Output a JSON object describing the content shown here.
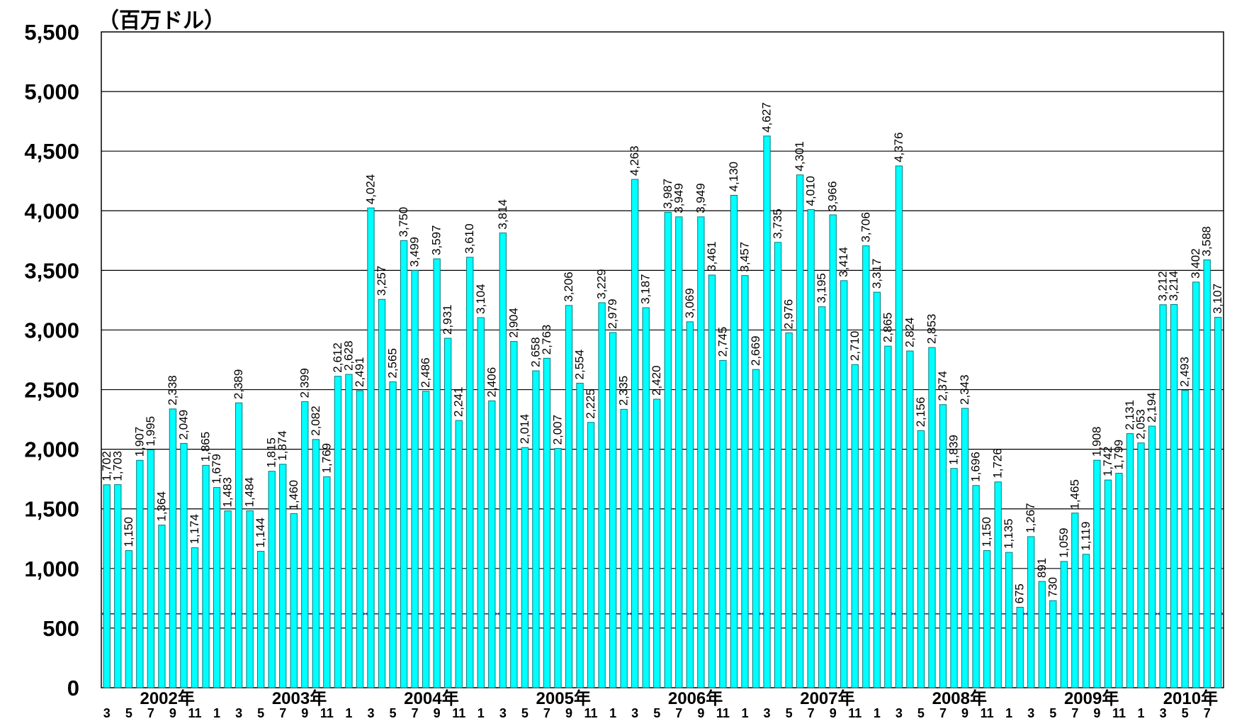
{
  "chart_data": {
    "type": "bar",
    "unit_label": "（百万ドル）",
    "title": "",
    "xlabel": "",
    "ylabel": "",
    "ylim": [
      0,
      5500
    ],
    "yticks": [
      0,
      500,
      1000,
      1500,
      2000,
      2500,
      3000,
      3500,
      4000,
      4500,
      5000,
      5500
    ],
    "ytick_labels": [
      "0",
      "500",
      "1,000",
      "1,500",
      "2,000",
      "2,500",
      "3,000",
      "3,500",
      "4,000",
      "4,500",
      "5,000",
      "5,500"
    ],
    "grid": true,
    "bar_color": "#00FFFF",
    "bar_stroke": "#007B7B",
    "arrow_color": "#1F3FA0",
    "categories": [
      "2002-03",
      "2002-04",
      "2002-05",
      "2002-06",
      "2002-07",
      "2002-08",
      "2002-09",
      "2002-10",
      "2002-11",
      "2002-12",
      "2003-01",
      "2003-02",
      "2003-03",
      "2003-04",
      "2003-05",
      "2003-06",
      "2003-07",
      "2003-08",
      "2003-09",
      "2003-10",
      "2003-11",
      "2003-12",
      "2004-01",
      "2004-02",
      "2004-03",
      "2004-04",
      "2004-05",
      "2004-06",
      "2004-07",
      "2004-08",
      "2004-09",
      "2004-10",
      "2004-11",
      "2004-12",
      "2005-01",
      "2005-02",
      "2005-03",
      "2005-04",
      "2005-05",
      "2005-06",
      "2005-07",
      "2005-08",
      "2005-09",
      "2005-10",
      "2005-11",
      "2005-12",
      "2006-01",
      "2006-02",
      "2006-03",
      "2006-04",
      "2006-05",
      "2006-06",
      "2006-07",
      "2006-08",
      "2006-09",
      "2006-10",
      "2006-11",
      "2006-12",
      "2007-01",
      "2007-02",
      "2007-03",
      "2007-04",
      "2007-05",
      "2007-06",
      "2007-07",
      "2007-08",
      "2007-09",
      "2007-10",
      "2007-11",
      "2007-12",
      "2008-01",
      "2008-02",
      "2008-03",
      "2008-04",
      "2008-05",
      "2008-06",
      "2008-07",
      "2008-08",
      "2008-09",
      "2008-10",
      "2008-11",
      "2008-12",
      "2009-01",
      "2009-02",
      "2009-03",
      "2009-04",
      "2009-05",
      "2009-06",
      "2009-07",
      "2009-08",
      "2009-09",
      "2009-10",
      "2009-11",
      "2009-12",
      "2010-01",
      "2010-02",
      "2010-03",
      "2010-04",
      "2010-05",
      "2010-06",
      "2010-07",
      "2010-08"
    ],
    "values": [
      1702,
      1703,
      1150,
      1907,
      1995,
      1364,
      2338,
      2049,
      1174,
      1865,
      1679,
      1483,
      2389,
      1484,
      1144,
      1815,
      1874,
      1460,
      2399,
      2082,
      1769,
      2612,
      2628,
      2491,
      4024,
      3257,
      2565,
      3750,
      3499,
      2486,
      3597,
      2931,
      2241,
      3610,
      3104,
      2406,
      3814,
      2904,
      2014,
      2658,
      2763,
      2007,
      3206,
      2554,
      2225,
      3229,
      2979,
      2335,
      4263,
      3187,
      2420,
      3987,
      3949,
      3069,
      3949,
      3461,
      2745,
      4130,
      3457,
      2669,
      4627,
      3735,
      2976,
      4301,
      4010,
      3195,
      3966,
      3414,
      2710,
      3706,
      3317,
      2865,
      4376,
      2824,
      2156,
      2853,
      2374,
      1839,
      2343,
      1696,
      1150,
      1726,
      1135,
      675,
      1267,
      891,
      730,
      1059,
      1465,
      1119,
      1908,
      1742,
      1799,
      2131,
      2053,
      2194,
      3212,
      3214,
      2493,
      3402,
      3588,
      3107
    ],
    "data_labels": [
      "1,702",
      "1,703",
      "1,150",
      "1,907",
      "1,995",
      "1,364",
      "2,338",
      "2,049",
      "1,174",
      "1,865",
      "1,679",
      "1,483",
      "2,389",
      "1,484",
      "1,144",
      "1,815",
      "1,874",
      "1,460",
      "2,399",
      "2,082",
      "1,769",
      "2,612",
      "2,628",
      "2,491",
      "4,024",
      "3,257",
      "2,565",
      "3,750",
      "3,499",
      "2,486",
      "3,597",
      "2,931",
      "2,241",
      "3,610",
      "3,104",
      "2,406",
      "3,814",
      "2,904",
      "2,014",
      "2,658",
      "2,763",
      "2,007",
      "3,206",
      "2,554",
      "2,225",
      "3,229",
      "2,979",
      "2,335",
      "4,263",
      "3,187",
      "2,420",
      "3,987",
      "3,949",
      "3,069",
      "3,949",
      "3,461",
      "2,745",
      "4,130",
      "3,457",
      "2,669",
      "4,627",
      "3,735",
      "2,976",
      "4,301",
      "4,010",
      "3,195",
      "3,966",
      "3,414",
      "2,710",
      "3,706",
      "3,317",
      "2,865",
      "4,376",
      "2,824",
      "2,156",
      "2,853",
      "2,374",
      "1,839",
      "2,343",
      "1,696",
      "1,150",
      "1,726",
      "1,135",
      "675",
      "1,267",
      "891",
      "730",
      "1,059",
      "1,465",
      "1,119",
      "1,908",
      "1,742",
      "1,799",
      "2,131",
      "2,053",
      "2,194",
      "3,212",
      "3,214",
      "2,493",
      "3,402",
      "3,588",
      "3,107"
    ],
    "month_ticks": [
      {
        "index": 0,
        "label": "3"
      },
      {
        "index": 2,
        "label": "5"
      },
      {
        "index": 4,
        "label": "7"
      },
      {
        "index": 6,
        "label": "9"
      },
      {
        "index": 8,
        "label": "11"
      },
      {
        "index": 10,
        "label": "1"
      },
      {
        "index": 12,
        "label": "3"
      },
      {
        "index": 14,
        "label": "5"
      },
      {
        "index": 16,
        "label": "7"
      },
      {
        "index": 18,
        "label": "9"
      },
      {
        "index": 20,
        "label": "11"
      },
      {
        "index": 22,
        "label": "1"
      },
      {
        "index": 24,
        "label": "3"
      },
      {
        "index": 26,
        "label": "5"
      },
      {
        "index": 28,
        "label": "7"
      },
      {
        "index": 30,
        "label": "9"
      },
      {
        "index": 32,
        "label": "11"
      },
      {
        "index": 34,
        "label": "1"
      },
      {
        "index": 36,
        "label": "3"
      },
      {
        "index": 38,
        "label": "5"
      },
      {
        "index": 40,
        "label": "7"
      },
      {
        "index": 42,
        "label": "9"
      },
      {
        "index": 44,
        "label": "11"
      },
      {
        "index": 46,
        "label": "1"
      },
      {
        "index": 48,
        "label": "3"
      },
      {
        "index": 50,
        "label": "5"
      },
      {
        "index": 52,
        "label": "7"
      },
      {
        "index": 54,
        "label": "9"
      },
      {
        "index": 56,
        "label": "11"
      },
      {
        "index": 58,
        "label": "1"
      },
      {
        "index": 60,
        "label": "3"
      },
      {
        "index": 62,
        "label": "5"
      },
      {
        "index": 64,
        "label": "7"
      },
      {
        "index": 66,
        "label": "9"
      },
      {
        "index": 68,
        "label": "11"
      },
      {
        "index": 70,
        "label": "1"
      },
      {
        "index": 72,
        "label": "3"
      },
      {
        "index": 74,
        "label": "5"
      },
      {
        "index": 76,
        "label": "7"
      },
      {
        "index": 78,
        "label": "9"
      },
      {
        "index": 80,
        "label": "11"
      },
      {
        "index": 82,
        "label": "1"
      },
      {
        "index": 84,
        "label": "3"
      },
      {
        "index": 86,
        "label": "5"
      },
      {
        "index": 88,
        "label": "7"
      },
      {
        "index": 90,
        "label": "9"
      },
      {
        "index": 92,
        "label": "11"
      },
      {
        "index": 94,
        "label": "1"
      },
      {
        "index": 96,
        "label": "3"
      },
      {
        "index": 98,
        "label": "5"
      },
      {
        "index": 100,
        "label": "7"
      }
    ],
    "fiscal_years": [
      {
        "label": "2002年",
        "start": 0,
        "end": 12
      },
      {
        "label": "2003年",
        "start": 12,
        "end": 24
      },
      {
        "label": "2004年",
        "start": 24,
        "end": 36
      },
      {
        "label": "2005年",
        "start": 36,
        "end": 48
      },
      {
        "label": "2006年",
        "start": 48,
        "end": 60
      },
      {
        "label": "2007年",
        "start": 60,
        "end": 72
      },
      {
        "label": "2008年",
        "start": 72,
        "end": 84
      },
      {
        "label": "2009年",
        "start": 84,
        "end": 96
      },
      {
        "label": "2010年",
        "start": 96,
        "end": 102
      }
    ],
    "arrow_level": 620
  }
}
